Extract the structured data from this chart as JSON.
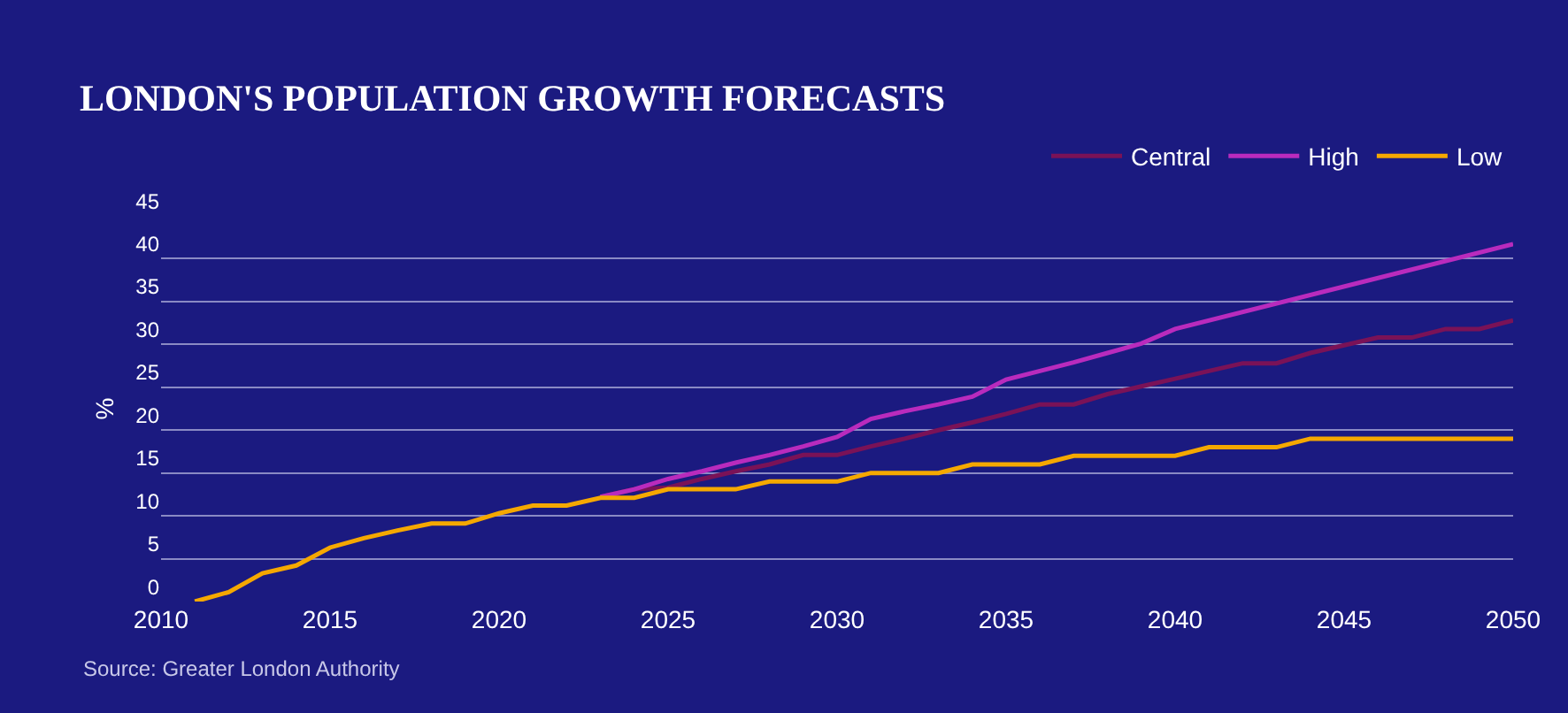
{
  "chart_data": {
    "type": "line",
    "title": "LONDON'S POPULATION GROWTH FORECASTS",
    "ylabel": "%",
    "xlim": [
      2010,
      2050
    ],
    "xticks": [
      2010,
      2015,
      2020,
      2025,
      2030,
      2035,
      2040,
      2045,
      2050
    ],
    "ylim": [
      0,
      45
    ],
    "yticks": [
      0,
      5,
      10,
      15,
      20,
      25,
      30,
      35,
      40,
      45
    ],
    "grid": "y",
    "legend": "top right",
    "line_style": "solid",
    "series": [
      {
        "name": "Central",
        "color": "#7a1257",
        "x": [
          2023,
          2024,
          2025,
          2026,
          2027,
          2028,
          2029,
          2030,
          2031,
          2032,
          2033,
          2034,
          2035,
          2036,
          2037,
          2038,
          2039,
          2040,
          2041,
          2042,
          2043,
          2044,
          2045,
          2046,
          2047,
          2048,
          2049,
          2050
        ],
        "values": [
          12.2,
          13.1,
          13.3,
          14.3,
          15.2,
          16,
          17.1,
          17.1,
          18.1,
          19,
          20,
          20.9,
          21.9,
          23,
          23,
          24.2,
          25.1,
          26,
          26.9,
          27.8,
          27.8,
          29,
          29.9,
          30.8,
          30.8,
          31.8,
          31.8,
          32.8
        ]
      },
      {
        "name": "High",
        "color": "#b92bbd",
        "x": [
          2023,
          2024,
          2025,
          2026,
          2027,
          2028,
          2029,
          2030,
          2031,
          2032,
          2033,
          2034,
          2035,
          2036,
          2037,
          2038,
          2039,
          2040,
          2050
        ],
        "values": [
          12.2,
          13.1,
          14.3,
          15.2,
          16.2,
          17.1,
          18.1,
          19.2,
          21.3,
          22.2,
          23,
          23.9,
          25.9,
          26.9,
          27.9,
          29,
          30.1,
          31.8,
          41.7
        ]
      },
      {
        "name": "Low",
        "color": "#f5a800",
        "x": [
          2011,
          2012,
          2013,
          2014,
          2015,
          2016,
          2017,
          2018,
          2019,
          2020,
          2021,
          2022,
          2023,
          2024,
          2025,
          2026,
          2027,
          2028,
          2029,
          2030,
          2031,
          2032,
          2033,
          2034,
          2035,
          2036,
          2037,
          2038,
          2039,
          2040,
          2041,
          2042,
          2043,
          2044,
          2045,
          2046,
          2047,
          2048,
          2049,
          2050
        ],
        "values": [
          0,
          1.1,
          3.3,
          4.2,
          6.3,
          7.4,
          8.3,
          9.1,
          9.1,
          10.3,
          11.2,
          11.2,
          12.1,
          12.1,
          13.1,
          13.1,
          13.1,
          14,
          14,
          14,
          15,
          15,
          15,
          16,
          16,
          16,
          17,
          17,
          17,
          17,
          18,
          18,
          18,
          19,
          19,
          19,
          19,
          19,
          19,
          19
        ]
      }
    ],
    "annotations": [
      "Source: Greater London Authority"
    ]
  }
}
